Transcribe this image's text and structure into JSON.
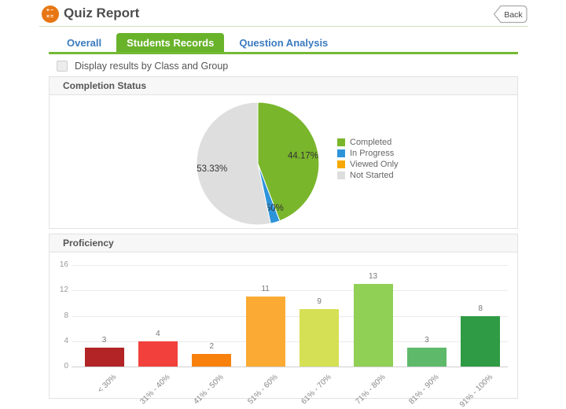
{
  "header": {
    "title": "Quiz Report",
    "icon_glyphs": {
      "row1": "+−",
      "row2": "×="
    },
    "back_label": "Back"
  },
  "tabs": [
    {
      "label": "Overall",
      "active": false
    },
    {
      "label": "Students Records",
      "active": true
    },
    {
      "label": "Question Analysis",
      "active": false
    }
  ],
  "filter": {
    "checkbox_label": "Display results by Class and Group",
    "checked": false
  },
  "colors": {
    "brand_green": "#69b32b",
    "tab_link_blue": "#3a7bbf",
    "header_icon_orange": "#e87613"
  },
  "chart_data": [
    {
      "type": "pie",
      "title": "Completion Status",
      "legend_position": "right",
      "start_angle_deg": 0,
      "direction": "clockwise",
      "slices": [
        {
          "label": "Completed",
          "value": 44.17,
          "display": "44.17%",
          "color": "#7ab62c"
        },
        {
          "label": "In Progress",
          "value": 2.5,
          "display": "2.50%",
          "color": "#2e94da"
        },
        {
          "label": "Viewed Only",
          "value": 0,
          "display": "",
          "color": "#f7a800"
        },
        {
          "label": "Not Started",
          "value": 53.33,
          "display": "53.33%",
          "color": "#dedede"
        }
      ]
    },
    {
      "type": "bar",
      "title": "Proficiency",
      "categories": [
        "< 30%",
        "31% - 40%",
        "41% - 50%",
        "51% - 60%",
        "61% - 70%",
        "71% - 80%",
        "81% - 90%",
        "91% - 100%"
      ],
      "values": [
        3,
        4,
        2,
        11,
        9,
        13,
        3,
        8
      ],
      "colors": [
        "#b22426",
        "#f2413c",
        "#f8810d",
        "#fbab33",
        "#d5e054",
        "#90d055",
        "#5eba6a",
        "#2f9b44"
      ],
      "ylim": [
        0,
        16
      ],
      "yticks": [
        0,
        4,
        8,
        12,
        16
      ],
      "grid": true,
      "legend": false
    }
  ]
}
